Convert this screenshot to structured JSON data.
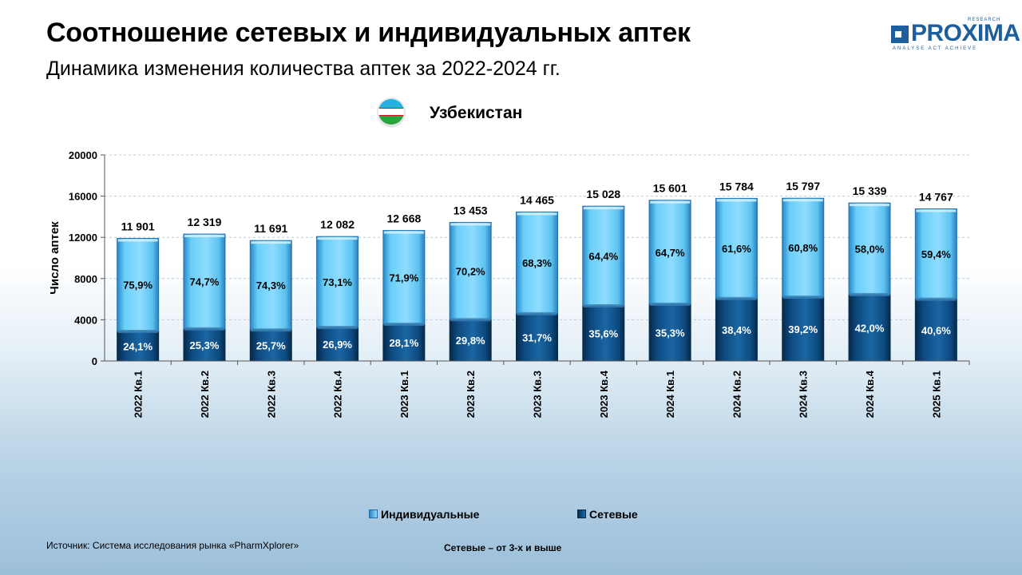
{
  "header": {
    "title": "Соотношение сетевых и индивидуальных аптек",
    "subtitle": "Динамика изменения количества аптек за 2022-2024 гг."
  },
  "logo": {
    "name": "PROXIMA",
    "research": "RESEARCH",
    "tagline": "ANALYSE ACT ACHIEVE",
    "color": "#1c5f9c"
  },
  "country": {
    "name": "Узбекистан",
    "flag_icon": "uzbekistan-flag-icon"
  },
  "chart_data": {
    "type": "bar",
    "stacked": true,
    "categories": [
      "2022 Кв.1",
      "2022 Кв.2",
      "2022 Кв.3",
      "2022 Кв.4",
      "2023 Кв.1",
      "2023 Кв.2",
      "2023 Кв.3",
      "2023 Кв.4",
      "2024 Кв.1",
      "2024 Кв.2",
      "2024 Кв.3",
      "2024 Кв.4",
      "2025 Кв.1"
    ],
    "totals": [
      11901,
      12319,
      11691,
      12082,
      12668,
      13453,
      14465,
      15028,
      15601,
      15784,
      15797,
      15339,
      14767
    ],
    "total_labels": [
      "11 901",
      "12 319",
      "11 691",
      "12 082",
      "12 668",
      "13 453",
      "14 465",
      "15 028",
      "15 601",
      "15 784",
      "15 797",
      "15 339",
      "14 767"
    ],
    "series": [
      {
        "name": "Сетевые",
        "color": "#0f4f86",
        "share_pct": [
          24.1,
          25.3,
          25.7,
          26.9,
          28.1,
          29.8,
          31.7,
          35.6,
          35.3,
          38.4,
          39.2,
          42.0,
          40.6
        ],
        "labels": [
          "24,1%",
          "25,3%",
          "25,7%",
          "26,9%",
          "28,1%",
          "29,8%",
          "31,7%",
          "35,6%",
          "35,3%",
          "38,4%",
          "39,2%",
          "42,0%",
          "40,6%"
        ]
      },
      {
        "name": "Индивидуальные",
        "color": "#5fcaf5",
        "share_pct": [
          75.9,
          74.7,
          74.3,
          73.1,
          71.9,
          70.2,
          68.3,
          64.4,
          64.7,
          61.6,
          60.8,
          58.0,
          59.4
        ],
        "labels": [
          "75,9%",
          "74,7%",
          "74,3%",
          "73,1%",
          "71,9%",
          "70,2%",
          "68,3%",
          "64,4%",
          "64,7%",
          "61,6%",
          "60,8%",
          "58,0%",
          "59,4%"
        ]
      }
    ],
    "ylabel": "Число аптек",
    "ylim": [
      0,
      20000
    ],
    "yticks": [
      "0",
      "4000",
      "8000",
      "12000",
      "16000",
      "20000"
    ],
    "ytick_values": [
      0,
      4000,
      8000,
      12000,
      16000,
      20000
    ],
    "grid": true,
    "legend_position": "bottom"
  },
  "legend": {
    "individual": "Индивидуальные",
    "network": "Сетевые"
  },
  "footer": {
    "source": "Источник: Система исследования рынка «PharmXplorer»",
    "note": "Сетевые – от 3-х и выше"
  }
}
